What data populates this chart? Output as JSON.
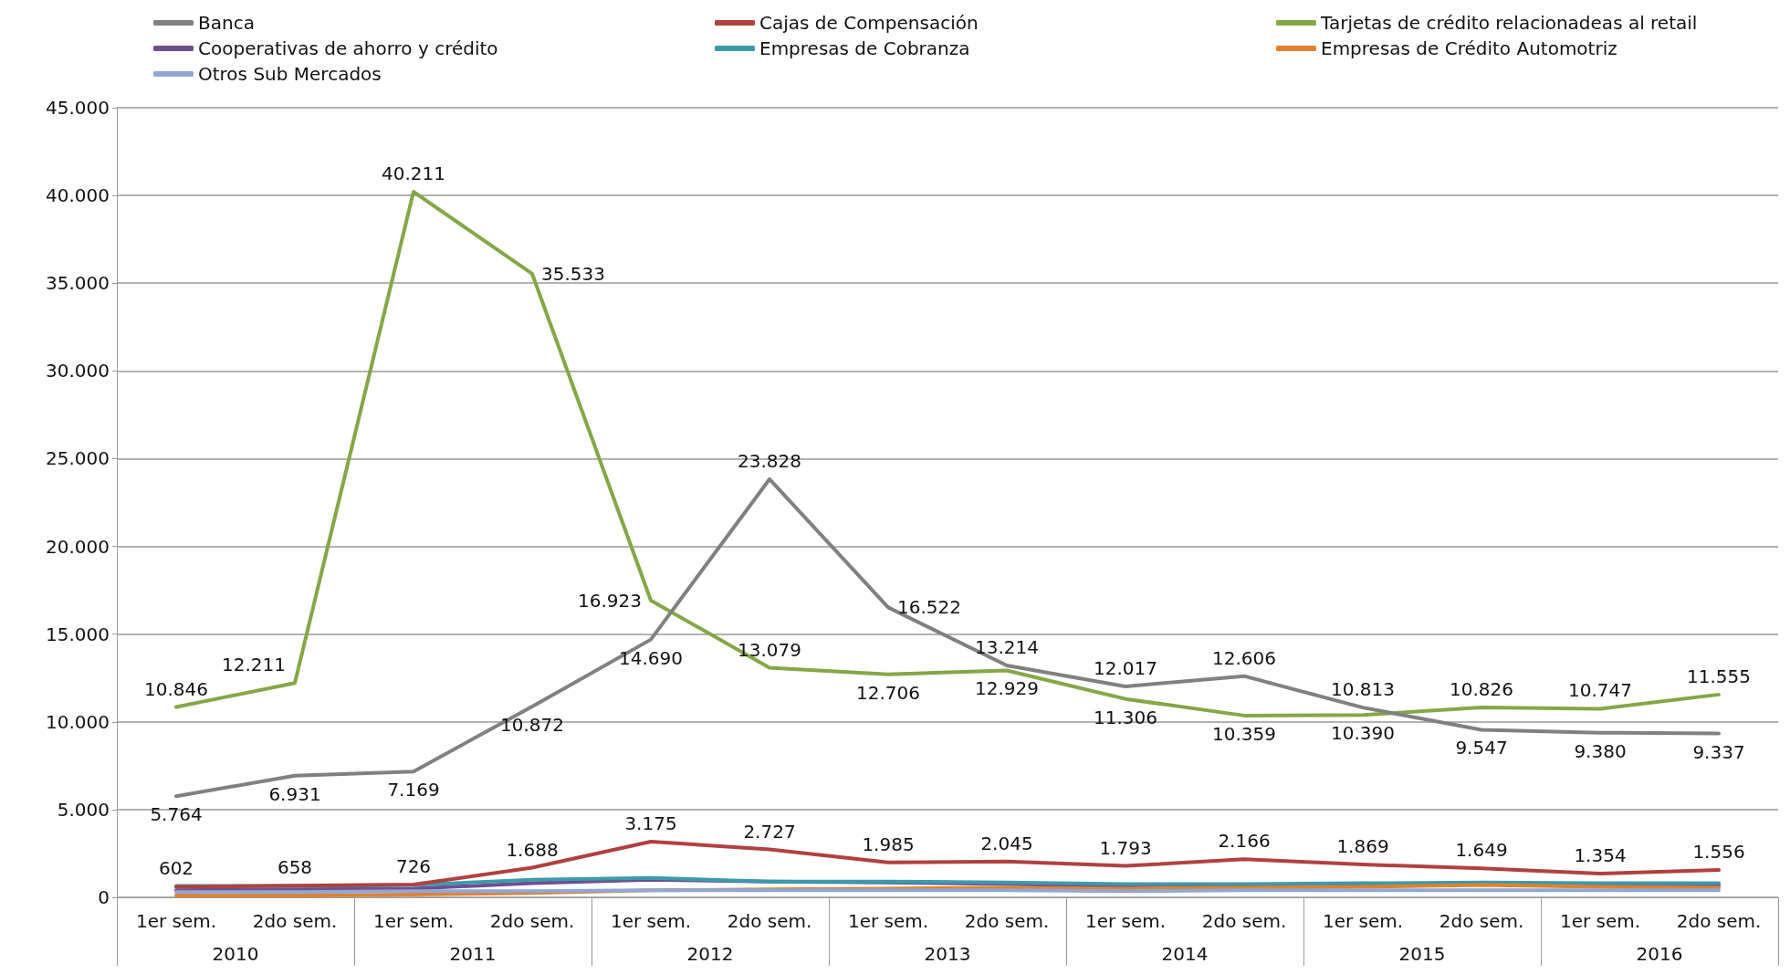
{
  "chart_data": {
    "type": "line",
    "categories": [
      "1er sem.",
      "2do sem.",
      "1er sem.",
      "2do sem.",
      "1er sem.",
      "2do sem.",
      "1er sem.",
      "2do sem.",
      "1er sem.",
      "2do sem.",
      "1er sem.",
      "2do sem.",
      "1er sem.",
      "2do sem."
    ],
    "annotations": [
      "2010",
      "2011",
      "2012",
      "2013",
      "2014",
      "2015",
      "2016"
    ],
    "ylim": [
      0,
      45000
    ],
    "yticks": [
      {
        "value": 0,
        "label": "0"
      },
      {
        "value": 5000,
        "label": "5.000"
      },
      {
        "value": 10000,
        "label": "10.000"
      },
      {
        "value": 15000,
        "label": "15.000"
      },
      {
        "value": 20000,
        "label": "20.000"
      },
      {
        "value": 25000,
        "label": "25.000"
      },
      {
        "value": 30000,
        "label": "30.000"
      },
      {
        "value": 35000,
        "label": "35.000"
      },
      {
        "value": 40000,
        "label": "40.000"
      },
      {
        "value": 45000,
        "label": "45.000"
      }
    ],
    "grid": "y",
    "legend": "top",
    "marker": "none",
    "line_style": "solid",
    "series": [
      {
        "name": "Banca",
        "color": "#808080",
        "values": [
          5764,
          6931,
          7169,
          10872,
          14690,
          23828,
          16522,
          13214,
          12017,
          12606,
          10813,
          9547,
          9380,
          9337
        ],
        "value_labels": [
          "5.764",
          "6.931",
          "7.169",
          "10.872",
          "14.690",
          "23.828",
          "16.522",
          "13.214",
          "12.017",
          "12.606",
          "10.813",
          "9.547",
          "9.380",
          "9.337"
        ]
      },
      {
        "name": "Cajas de Compensación",
        "color": "#b0413e",
        "values": [
          602,
          658,
          726,
          1688,
          3175,
          2727,
          1985,
          2045,
          1793,
          2166,
          1869,
          1649,
          1354,
          1556
        ],
        "value_labels": [
          "602",
          "658",
          "726",
          "1.688",
          "3.175",
          "2.727",
          "1.985",
          "2.045",
          "1.793",
          "2.166",
          "1.869",
          "1.649",
          "1.354",
          "1.556"
        ]
      },
      {
        "name": "Tarjetas de crédito relacionadeas al retail",
        "color": "#84a746",
        "values": [
          10846,
          12211,
          40211,
          35533,
          16923,
          13079,
          12706,
          12929,
          11306,
          10359,
          10390,
          10826,
          10747,
          11555
        ],
        "value_labels": [
          "10.846",
          "12.211",
          "40.211",
          "35.533",
          "16.923",
          "13.079",
          "12.706",
          "12.929",
          "11.306",
          "10.359",
          "10.390",
          "10.826",
          "10.747",
          "11.555"
        ]
      },
      {
        "name": "Cooperativas de ahorro y crédito",
        "color": "#6f4e8f",
        "values": [
          400,
          450,
          500,
          800,
          1000,
          900,
          850,
          750,
          650,
          700,
          700,
          750,
          700,
          700
        ]
      },
      {
        "name": "Empresas de Cobranza",
        "color": "#3c9aad",
        "values": [
          650,
          650,
          700,
          1000,
          1100,
          900,
          900,
          850,
          750,
          750,
          800,
          850,
          800,
          800
        ]
      },
      {
        "name": "Empresas de Crédito Automotriz",
        "color": "#e0822e",
        "values": [
          100,
          100,
          150,
          250,
          400,
          450,
          500,
          550,
          500,
          550,
          600,
          700,
          600,
          550
        ]
      },
      {
        "name": "Otros Sub Mercados",
        "color": "#8fa8d6",
        "values": [
          300,
          300,
          350,
          350,
          400,
          400,
          400,
          400,
          350,
          400,
          400,
          400,
          400,
          400
        ]
      }
    ]
  }
}
